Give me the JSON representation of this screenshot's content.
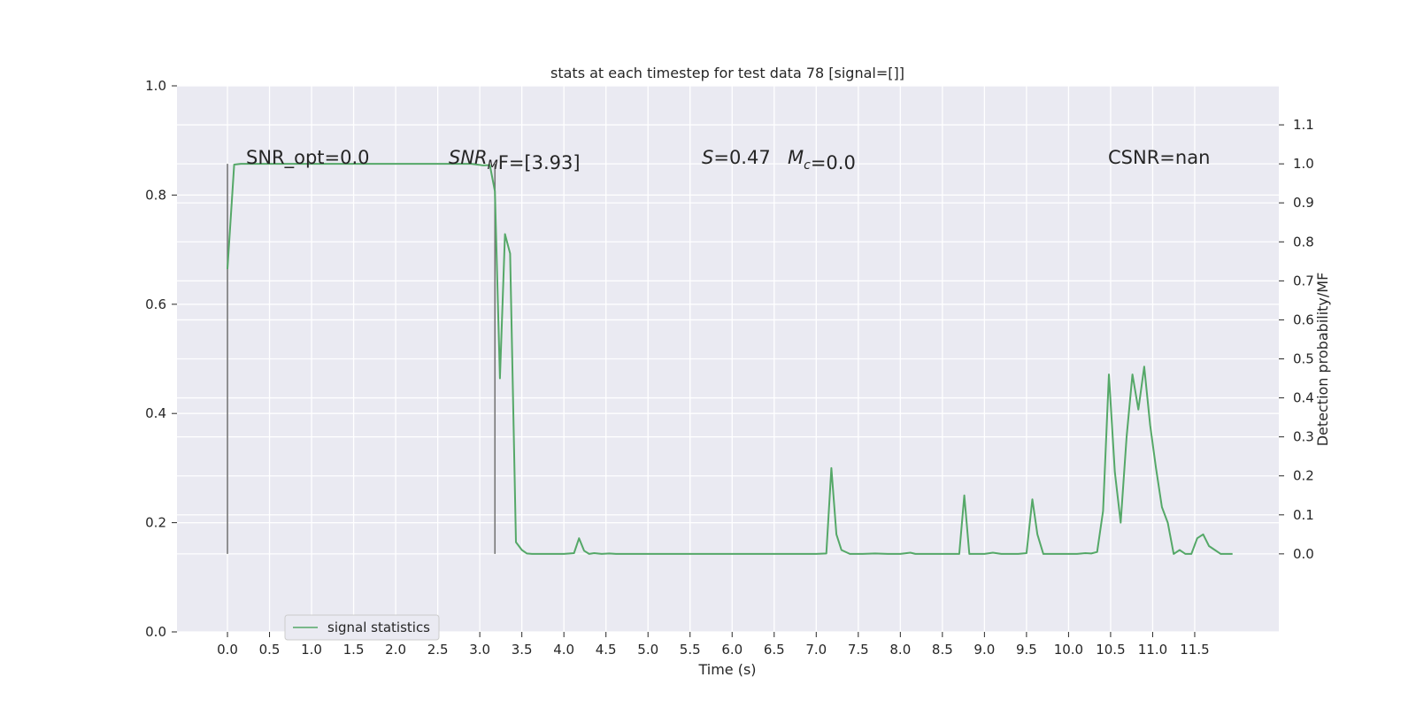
{
  "chart_data": {
    "type": "line",
    "title": "stats at each timestep for test data 78 [signal=[]]",
    "xlabel": "Time (s)",
    "ylabel": "",
    "y2label": "Detection probability/MF",
    "xlim": [
      -0.6,
      12.5
    ],
    "ylim": [
      0.0,
      1.0
    ],
    "y2lim": [
      -0.2,
      1.2
    ],
    "x_ticks": [
      "0.0",
      "0.5",
      "1.0",
      "1.5",
      "2.0",
      "2.5",
      "3.0",
      "3.5",
      "4.0",
      "4.5",
      "5.0",
      "5.5",
      "6.0",
      "6.5",
      "7.0",
      "7.5",
      "8.0",
      "8.5",
      "9.0",
      "9.5",
      "10.0",
      "10.5",
      "11.0",
      "11.5"
    ],
    "y_ticks": [
      "0.0",
      "0.2",
      "0.4",
      "0.6",
      "0.8",
      "1.0"
    ],
    "y2_ticks": [
      "0.0",
      "0.1",
      "0.2",
      "0.3",
      "0.4",
      "0.5",
      "0.6",
      "0.7",
      "0.8",
      "0.9",
      "1.0",
      "1.1"
    ],
    "grid": true,
    "background_color": "#eaeaf2",
    "legend_position": "lower-left",
    "series": [
      {
        "name": "signal statistics",
        "color": "#55a868",
        "axis": "right",
        "x": [
          0.0,
          0.08,
          0.16,
          0.3,
          0.5,
          1.0,
          1.5,
          2.0,
          2.5,
          2.9,
          3.04,
          3.12,
          3.18,
          3.24,
          3.3,
          3.36,
          3.43,
          3.5,
          3.56,
          3.62,
          3.8,
          4.0,
          4.12,
          4.18,
          4.24,
          4.3,
          4.36,
          4.45,
          4.54,
          4.62,
          4.8,
          5.0,
          5.5,
          6.0,
          6.5,
          7.0,
          7.12,
          7.18,
          7.24,
          7.3,
          7.4,
          7.55,
          7.7,
          7.85,
          8.0,
          8.12,
          8.18,
          8.24,
          8.4,
          8.6,
          8.7,
          8.76,
          8.82,
          8.9,
          9.0,
          9.1,
          9.2,
          9.3,
          9.4,
          9.5,
          9.57,
          9.63,
          9.7,
          9.78,
          9.86,
          10.0,
          10.1,
          10.2,
          10.27,
          10.34,
          10.41,
          10.48,
          10.55,
          10.62,
          10.69,
          10.76,
          10.83,
          10.9,
          10.97,
          11.04,
          11.11,
          11.18,
          11.25,
          11.32,
          11.39,
          11.46,
          11.53,
          11.6,
          11.67,
          11.74,
          11.81,
          11.88,
          11.95
        ],
        "y": [
          0.73,
          0.998,
          1.0,
          1.0,
          1.0,
          1.0,
          1.0,
          1.0,
          1.0,
          1.0,
          0.996,
          0.997,
          0.93,
          0.45,
          0.82,
          0.77,
          0.03,
          0.01,
          0.001,
          0.0,
          0.0,
          0.0,
          0.002,
          0.04,
          0.008,
          0.0,
          0.002,
          0.0,
          0.001,
          0.0,
          0.0,
          0.0,
          0.0,
          0.0,
          0.0,
          0.0,
          0.001,
          0.22,
          0.05,
          0.01,
          0.0,
          0.0,
          0.001,
          0.0,
          0.0,
          0.003,
          0.0,
          0.0,
          0.0,
          0.0,
          0.0,
          0.15,
          0.0,
          0.0,
          0.0,
          0.003,
          0.0,
          0.0,
          0.0,
          0.002,
          0.14,
          0.05,
          0.0,
          0.0,
          0.0,
          0.0,
          0.0,
          0.002,
          0.001,
          0.005,
          0.11,
          0.46,
          0.21,
          0.08,
          0.3,
          0.46,
          0.37,
          0.48,
          0.33,
          0.22,
          0.12,
          0.08,
          0.0,
          0.01,
          0.0,
          0.0,
          0.04,
          0.05,
          0.02,
          0.01,
          0.0,
          0.0,
          0.0
        ]
      }
    ],
    "vlines": [
      {
        "x": 0.0,
        "y_from": 0.0,
        "y_to": 1.0,
        "color": "#777777"
      },
      {
        "x": 3.18,
        "y_from": 0.0,
        "y_to": 1.0,
        "color": "#777777"
      }
    ],
    "annotations": [
      {
        "segments": [
          {
            "text": "SNR_opt=0.0",
            "italic": false
          }
        ]
      },
      {
        "segments": [
          {
            "text": "SNR",
            "italic": true
          },
          {
            "text": "M",
            "italic": true,
            "sub": true
          },
          {
            "text": "F=[3.93]",
            "italic": false
          }
        ]
      },
      {
        "segments": [
          {
            "text": "S",
            "italic": true
          },
          {
            "text": "=0.47",
            "italic": false
          }
        ]
      },
      {
        "segments": [
          {
            "text": "M",
            "italic": true
          },
          {
            "text": "c",
            "italic": true,
            "sub": true
          },
          {
            "text": "=0.0",
            "italic": false
          }
        ]
      },
      {
        "segments": [
          {
            "text": "CSNR=nan",
            "italic": false
          }
        ]
      }
    ]
  }
}
